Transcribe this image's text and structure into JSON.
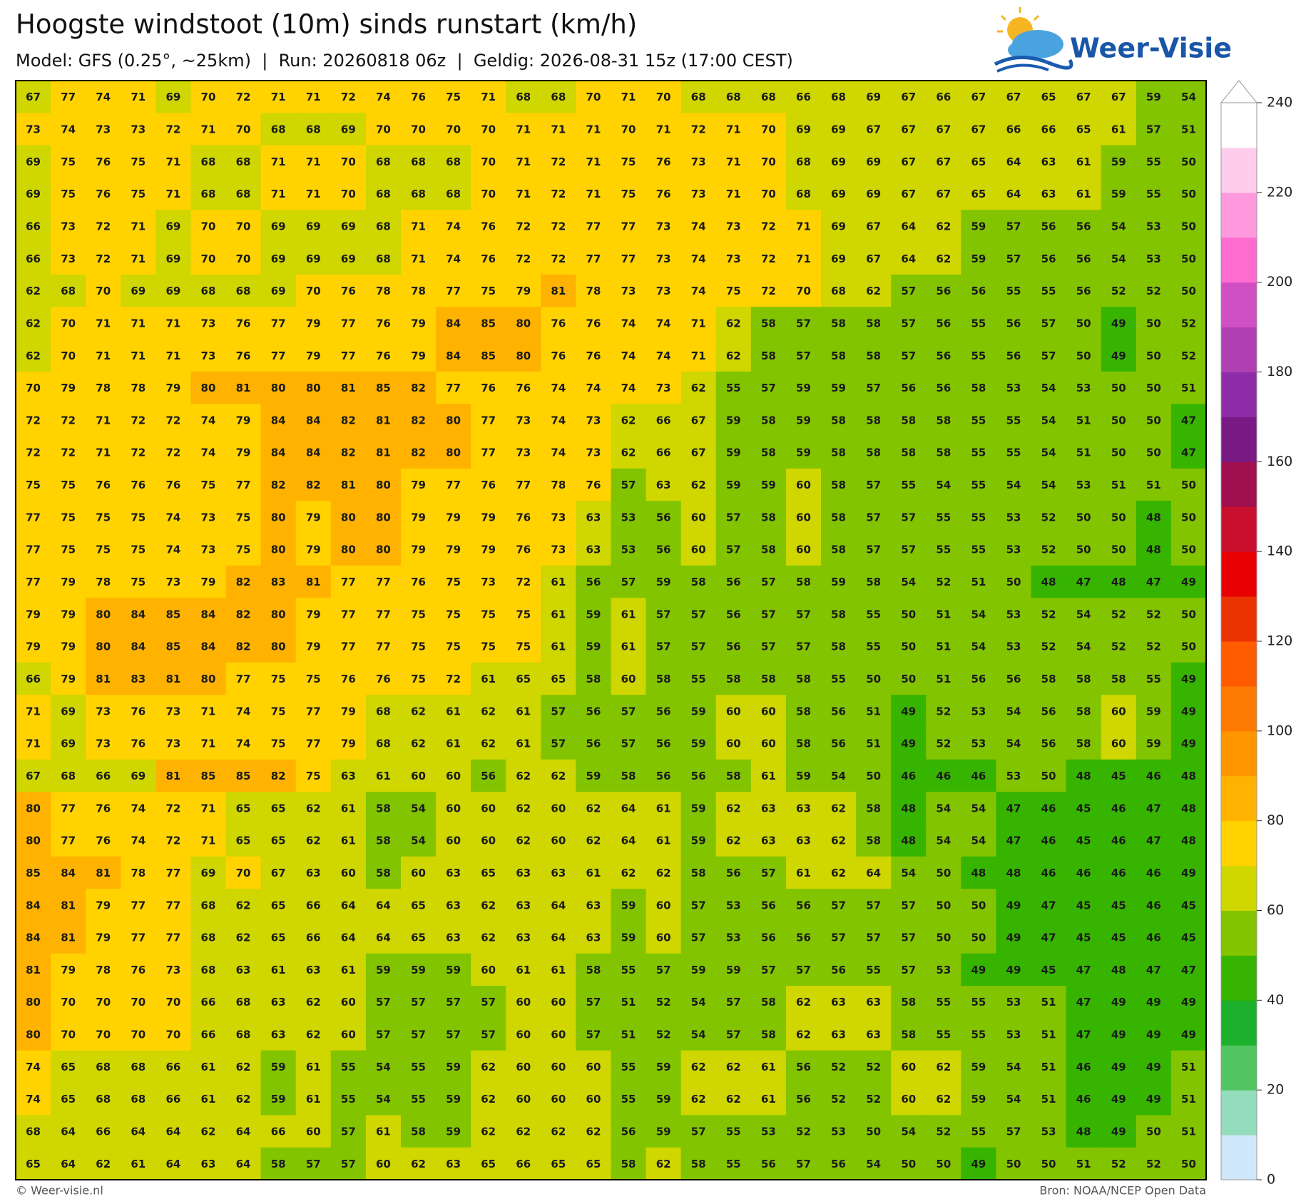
{
  "header": {
    "title": "Hoogste windstoot (10m) sinds runstart (km/h)",
    "subtitle": "Model: GFS (0.25°, ~25km)  |  Run: 20260818 06z  |  Geldig: 2026-08-31 15z (17:00 CEST)",
    "logo": "Weer-Visie"
  },
  "footer": {
    "left": "© Weer-visie.nl",
    "right": "Bron: NOAA/NCEP Open Data"
  },
  "colorbar": {
    "levels": [
      0,
      10,
      20,
      30,
      40,
      50,
      60,
      70,
      80,
      90,
      100,
      110,
      120,
      130,
      140,
      150,
      160,
      170,
      180,
      190,
      200,
      210,
      220,
      230,
      240
    ],
    "colors": [
      "#cfe7fa",
      "#93dcbc",
      "#52c562",
      "#1db02c",
      "#36b400",
      "#82c400",
      "#cfd600",
      "#ffd200",
      "#ffb300",
      "#ff9600",
      "#ff7a00",
      "#ff5c00",
      "#ea3300",
      "#e60000",
      "#c8102e",
      "#a0104f",
      "#7a1a85",
      "#8e2da8",
      "#b03fb2",
      "#d04fc3",
      "#ff6ccf",
      "#ff9ade",
      "#ffcdec",
      "#ffffff"
    ],
    "ticks": [
      0,
      20,
      40,
      60,
      80,
      100,
      120,
      140,
      160,
      180,
      200,
      220,
      240
    ]
  },
  "grid": {
    "rows": [
      [
        67,
        77,
        74,
        71,
        69,
        70,
        72,
        71,
        71,
        72,
        74,
        76,
        75,
        71,
        68,
        68,
        70,
        71,
        70,
        68,
        68,
        68,
        66,
        68,
        69,
        67,
        66,
        67,
        67,
        65,
        67,
        67,
        59,
        54
      ],
      [
        73,
        74,
        73,
        73,
        72,
        71,
        70,
        68,
        68,
        69,
        70,
        70,
        70,
        70,
        71,
        71,
        71,
        70,
        71,
        72,
        71,
        70,
        69,
        69,
        67,
        67,
        67,
        67,
        66,
        66,
        65,
        61,
        57,
        51
      ],
      [
        69,
        75,
        76,
        75,
        71,
        68,
        68,
        71,
        71,
        70,
        68,
        68,
        68,
        70,
        71,
        72,
        71,
        75,
        76,
        73,
        71,
        70,
        68,
        69,
        69,
        67,
        67,
        65,
        64,
        63,
        61,
        59,
        55,
        50
      ],
      [
        69,
        75,
        76,
        75,
        71,
        68,
        68,
        71,
        71,
        70,
        68,
        68,
        68,
        70,
        71,
        72,
        71,
        75,
        76,
        73,
        71,
        70,
        68,
        69,
        69,
        67,
        67,
        65,
        64,
        63,
        61,
        59,
        55,
        50
      ],
      [
        66,
        73,
        72,
        71,
        69,
        70,
        70,
        69,
        69,
        69,
        68,
        71,
        74,
        76,
        72,
        72,
        77,
        77,
        73,
        74,
        73,
        72,
        71,
        69,
        67,
        64,
        62,
        59,
        57,
        56,
        56,
        54,
        53,
        50
      ],
      [
        66,
        73,
        72,
        71,
        69,
        70,
        70,
        69,
        69,
        69,
        68,
        71,
        74,
        76,
        72,
        72,
        77,
        77,
        73,
        74,
        73,
        72,
        71,
        69,
        67,
        64,
        62,
        59,
        57,
        56,
        56,
        54,
        53,
        50
      ],
      [
        62,
        68,
        70,
        69,
        69,
        68,
        68,
        69,
        70,
        76,
        78,
        78,
        77,
        75,
        79,
        81,
        78,
        73,
        73,
        74,
        75,
        72,
        70,
        68,
        62,
        57,
        56,
        56,
        55,
        55,
        56,
        52,
        52,
        50
      ],
      [
        62,
        70,
        71,
        71,
        71,
        73,
        76,
        77,
        79,
        77,
        76,
        79,
        84,
        85,
        80,
        76,
        76,
        74,
        74,
        71,
        62,
        58,
        57,
        58,
        58,
        57,
        56,
        55,
        56,
        57,
        50,
        49,
        50,
        52
      ],
      [
        62,
        70,
        71,
        71,
        71,
        73,
        76,
        77,
        79,
        77,
        76,
        79,
        84,
        85,
        80,
        76,
        76,
        74,
        74,
        71,
        62,
        58,
        57,
        58,
        58,
        57,
        56,
        55,
        56,
        57,
        50,
        49,
        50,
        52
      ],
      [
        70,
        79,
        78,
        78,
        79,
        80,
        81,
        80,
        80,
        81,
        85,
        82,
        77,
        76,
        76,
        74,
        74,
        74,
        73,
        62,
        55,
        57,
        59,
        59,
        57,
        56,
        56,
        58,
        53,
        54,
        53,
        50,
        50,
        51
      ],
      [
        72,
        72,
        71,
        72,
        72,
        74,
        79,
        84,
        84,
        82,
        81,
        82,
        80,
        77,
        73,
        74,
        73,
        62,
        66,
        67,
        59,
        58,
        59,
        58,
        58,
        58,
        58,
        55,
        55,
        54,
        51,
        50,
        50,
        47
      ],
      [
        72,
        72,
        71,
        72,
        72,
        74,
        79,
        84,
        84,
        82,
        81,
        82,
        80,
        77,
        73,
        74,
        73,
        62,
        66,
        67,
        59,
        58,
        59,
        58,
        58,
        58,
        58,
        55,
        55,
        54,
        51,
        50,
        50,
        47
      ],
      [
        75,
        75,
        76,
        76,
        76,
        75,
        77,
        82,
        82,
        81,
        80,
        79,
        77,
        76,
        77,
        78,
        76,
        57,
        63,
        62,
        59,
        59,
        60,
        58,
        57,
        55,
        54,
        55,
        54,
        54,
        53,
        51,
        51,
        50
      ],
      [
        77,
        75,
        75,
        75,
        74,
        73,
        75,
        80,
        79,
        80,
        80,
        79,
        79,
        79,
        76,
        73,
        63,
        53,
        56,
        60,
        57,
        58,
        60,
        58,
        57,
        57,
        55,
        55,
        53,
        52,
        50,
        50,
        48,
        50
      ],
      [
        77,
        75,
        75,
        75,
        74,
        73,
        75,
        80,
        79,
        80,
        80,
        79,
        79,
        79,
        76,
        73,
        63,
        53,
        56,
        60,
        57,
        58,
        60,
        58,
        57,
        57,
        55,
        55,
        53,
        52,
        50,
        50,
        48,
        50
      ],
      [
        77,
        79,
        78,
        75,
        73,
        79,
        82,
        83,
        81,
        77,
        77,
        76,
        75,
        73,
        72,
        61,
        56,
        57,
        59,
        58,
        56,
        57,
        58,
        59,
        58,
        54,
        52,
        51,
        50,
        48,
        47,
        48,
        47,
        49
      ],
      [
        79,
        79,
        80,
        84,
        85,
        84,
        82,
        80,
        79,
        77,
        77,
        75,
        75,
        75,
        75,
        61,
        59,
        61,
        57,
        57,
        56,
        57,
        57,
        58,
        55,
        50,
        51,
        54,
        53,
        52,
        54,
        52,
        52,
        50
      ],
      [
        79,
        79,
        80,
        84,
        85,
        84,
        82,
        80,
        79,
        77,
        77,
        75,
        75,
        75,
        75,
        61,
        59,
        61,
        57,
        57,
        56,
        57,
        57,
        58,
        55,
        50,
        51,
        54,
        53,
        52,
        54,
        52,
        52,
        50
      ],
      [
        66,
        79,
        81,
        83,
        81,
        80,
        77,
        75,
        75,
        76,
        76,
        75,
        72,
        61,
        65,
        65,
        58,
        60,
        58,
        55,
        58,
        58,
        58,
        55,
        50,
        50,
        51,
        56,
        56,
        58,
        58,
        58,
        55,
        49
      ],
      [
        71,
        69,
        73,
        76,
        73,
        71,
        74,
        75,
        77,
        79,
        68,
        62,
        61,
        62,
        61,
        57,
        56,
        57,
        56,
        59,
        60,
        60,
        58,
        56,
        51,
        49,
        52,
        53,
        54,
        56,
        58,
        60,
        59,
        49
      ],
      [
        71,
        69,
        73,
        76,
        73,
        71,
        74,
        75,
        77,
        79,
        68,
        62,
        61,
        62,
        61,
        57,
        56,
        57,
        56,
        59,
        60,
        60,
        58,
        56,
        51,
        49,
        52,
        53,
        54,
        56,
        58,
        60,
        59,
        49
      ],
      [
        67,
        68,
        66,
        69,
        81,
        85,
        85,
        82,
        75,
        63,
        61,
        60,
        60,
        56,
        62,
        62,
        59,
        58,
        56,
        56,
        58,
        61,
        59,
        54,
        50,
        46,
        46,
        46,
        53,
        50,
        48,
        45,
        46,
        48
      ],
      [
        80,
        77,
        76,
        74,
        72,
        71,
        65,
        65,
        62,
        61,
        58,
        54,
        60,
        60,
        62,
        60,
        62,
        64,
        61,
        59,
        62,
        63,
        63,
        62,
        58,
        48,
        54,
        54,
        47,
        46,
        45,
        46,
        47,
        48
      ],
      [
        80,
        77,
        76,
        74,
        72,
        71,
        65,
        65,
        62,
        61,
        58,
        54,
        60,
        60,
        62,
        60,
        62,
        64,
        61,
        59,
        62,
        63,
        63,
        62,
        58,
        48,
        54,
        54,
        47,
        46,
        45,
        46,
        47,
        48
      ],
      [
        85,
        84,
        81,
        78,
        77,
        69,
        70,
        67,
        63,
        60,
        58,
        60,
        63,
        65,
        63,
        63,
        61,
        62,
        62,
        58,
        56,
        57,
        61,
        62,
        64,
        54,
        50,
        48,
        48,
        46,
        46,
        46,
        46,
        49
      ],
      [
        84,
        81,
        79,
        77,
        77,
        68,
        62,
        65,
        66,
        64,
        64,
        65,
        63,
        62,
        63,
        64,
        63,
        59,
        60,
        57,
        53,
        56,
        56,
        57,
        57,
        57,
        50,
        50,
        49,
        47,
        45,
        45,
        46,
        45
      ],
      [
        84,
        81,
        79,
        77,
        77,
        68,
        62,
        65,
        66,
        64,
        64,
        65,
        63,
        62,
        63,
        64,
        63,
        59,
        60,
        57,
        53,
        56,
        56,
        57,
        57,
        57,
        50,
        50,
        49,
        47,
        45,
        45,
        46,
        45
      ],
      [
        81,
        79,
        78,
        76,
        73,
        68,
        63,
        61,
        63,
        61,
        59,
        59,
        59,
        60,
        61,
        61,
        58,
        55,
        57,
        59,
        59,
        57,
        57,
        56,
        55,
        57,
        53,
        49,
        49,
        45,
        47,
        48,
        47,
        47
      ],
      [
        80,
        70,
        70,
        70,
        70,
        66,
        68,
        63,
        62,
        60,
        57,
        57,
        57,
        57,
        60,
        60,
        57,
        51,
        52,
        54,
        57,
        58,
        62,
        63,
        63,
        58,
        55,
        55,
        53,
        51,
        47,
        49,
        49,
        49
      ],
      [
        80,
        70,
        70,
        70,
        70,
        66,
        68,
        63,
        62,
        60,
        57,
        57,
        57,
        57,
        60,
        60,
        57,
        51,
        52,
        54,
        57,
        58,
        62,
        63,
        63,
        58,
        55,
        55,
        53,
        51,
        47,
        49,
        49,
        49
      ],
      [
        74,
        65,
        68,
        68,
        66,
        61,
        62,
        59,
        61,
        55,
        54,
        55,
        59,
        62,
        60,
        60,
        60,
        55,
        59,
        62,
        62,
        61,
        56,
        52,
        52,
        60,
        62,
        59,
        54,
        51,
        46,
        49,
        49,
        51
      ],
      [
        74,
        65,
        68,
        68,
        66,
        61,
        62,
        59,
        61,
        55,
        54,
        55,
        59,
        62,
        60,
        60,
        60,
        55,
        59,
        62,
        62,
        61,
        56,
        52,
        52,
        60,
        62,
        59,
        54,
        51,
        46,
        49,
        49,
        51
      ],
      [
        68,
        64,
        66,
        64,
        64,
        62,
        64,
        66,
        60,
        57,
        61,
        58,
        59,
        62,
        62,
        62,
        62,
        56,
        59,
        57,
        55,
        53,
        52,
        53,
        50,
        54,
        52,
        55,
        57,
        53,
        48,
        49,
        50,
        51
      ],
      [
        65,
        64,
        62,
        61,
        64,
        63,
        64,
        58,
        57,
        57,
        60,
        62,
        63,
        65,
        66,
        65,
        65,
        58,
        62,
        58,
        55,
        56,
        57,
        56,
        54,
        50,
        50,
        49,
        50,
        50,
        51,
        52,
        52,
        50
      ]
    ]
  }
}
